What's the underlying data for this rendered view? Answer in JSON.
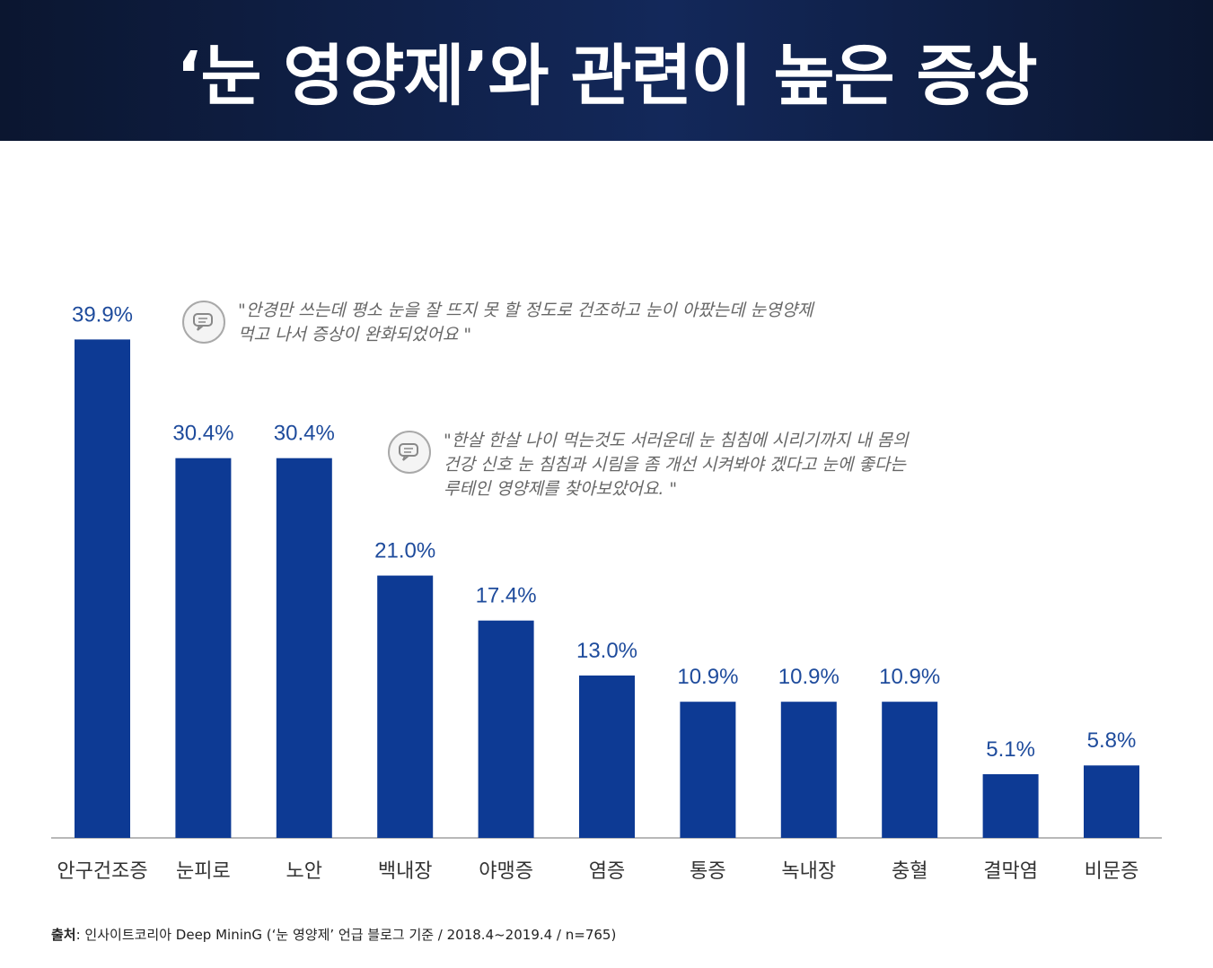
{
  "header": {
    "title": "‘눈 영양제’와 관련이 높은 증상"
  },
  "quotes": [
    {
      "icon": "speech-bubble-icon",
      "text": "\"안경만 쓰는데 평소 눈을 잘 뜨지 못 할 정도로 건조하고 눈이 아팠는데 눈영양제\n먹고 나서 증상이 완화되었어요 \""
    },
    {
      "icon": "speech-bubble-icon",
      "text": "\"한살 한살 나이 먹는것도 서러운데 눈 침침에 시리기까지 내 몸의\n건강 신호 눈 침침과 시림을 좀 개선 시켜봐야 겠다고 눈에 좋다는\n루테인 영양제를 찾아보았어요. \""
    }
  ],
  "chart_data": {
    "type": "bar",
    "title": "‘눈 영양제’와 관련이 높은 증상",
    "categories": [
      "안구건조증",
      "눈피로",
      "노안",
      "백내장",
      "야맹증",
      "염증",
      "통증",
      "녹내장",
      "충혈",
      "결막염",
      "비문증"
    ],
    "values": [
      39.9,
      30.4,
      30.4,
      21.0,
      17.4,
      13.0,
      10.9,
      10.9,
      10.9,
      5.1,
      5.8
    ],
    "value_labels": [
      "39.9%",
      "30.4%",
      "30.4%",
      "21.0%",
      "17.4%",
      "13.0%",
      "10.9%",
      "10.9%",
      "10.9%",
      "5.1%",
      "5.8%"
    ],
    "ylim": [
      0,
      40
    ],
    "grid": false,
    "bar_color": "#0d3a94",
    "label_color": "#1e4b9c"
  },
  "source": {
    "label": "출처",
    "text": ": 인사이트코리아 Deep MininG (‘눈 영양제’ 언급 블로그 기준 / 2018.4~2019.4 / n=765)"
  }
}
